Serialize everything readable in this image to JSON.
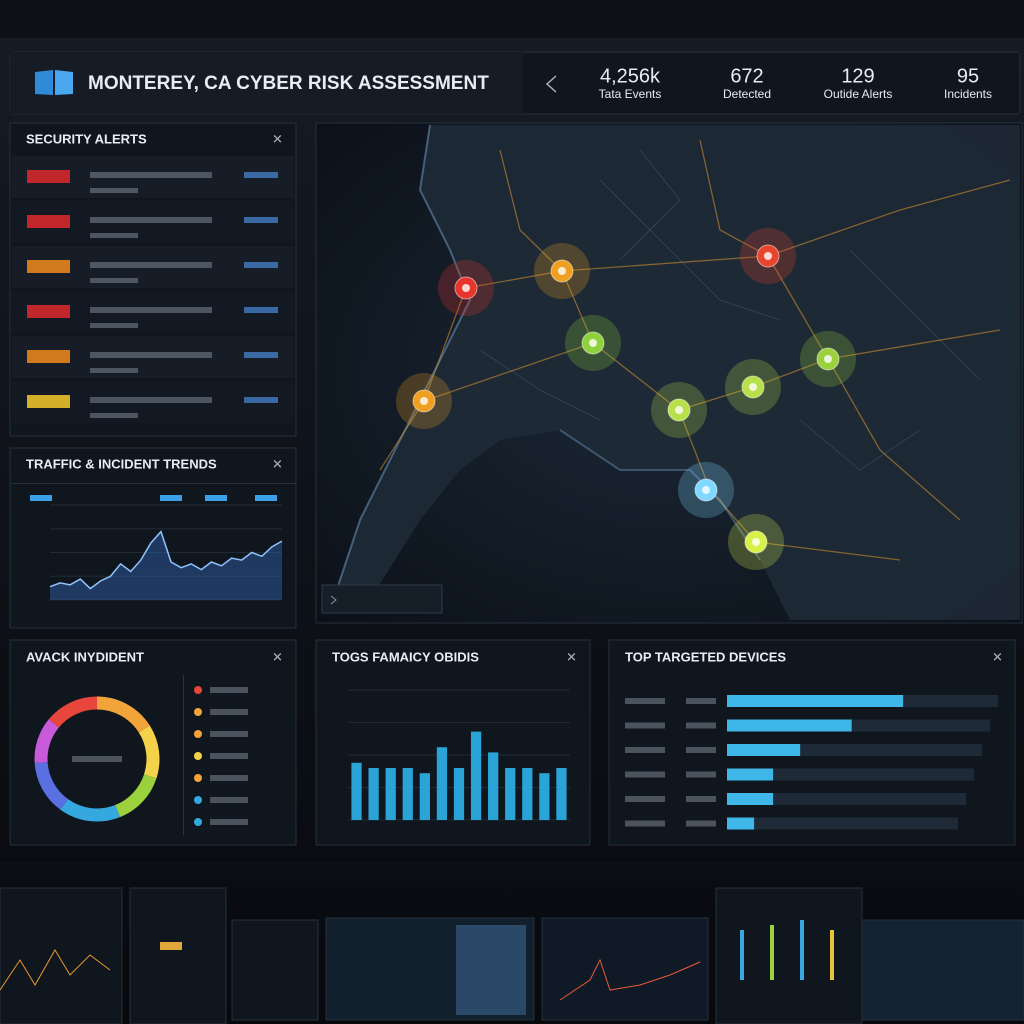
{
  "header": {
    "title": "MONTEREY, CA CYBER RISK ASSESSMENT",
    "stats": [
      {
        "value": "4,256k",
        "label": "Tata Events"
      },
      {
        "value": "672",
        "label": "Detected"
      },
      {
        "value": "129",
        "label": "Outide Alerts"
      },
      {
        "value": "95",
        "label": "Incidents"
      }
    ]
  },
  "panels": {
    "alerts": {
      "title": "SECURITY ALERTS"
    },
    "trends": {
      "title": "TRAFFIC & INCIDENT TRENDS",
      "chart": {
        "type": "area",
        "color": "#3b7be0",
        "ylim": [
          0,
          100
        ],
        "values": [
          14,
          18,
          16,
          22,
          12,
          20,
          25,
          38,
          30,
          42,
          60,
          72,
          40,
          34,
          38,
          32,
          40,
          36,
          44,
          42,
          50,
          46,
          56,
          62
        ]
      }
    },
    "incidents": {
      "title": "AVACK INYDIDENT",
      "chart": {
        "type": "pie",
        "values": [
          16,
          14,
          14,
          16,
          14,
          12,
          14
        ],
        "colors": [
          "#f2a33a",
          "#f4d24a",
          "#9bd13c",
          "#36a8e0",
          "#5a6fe0",
          "#c65ad8",
          "#e8463c"
        ]
      }
    },
    "bars": {
      "title": "TOGS FAMAICY OBIDIS",
      "chart": {
        "type": "bar",
        "color": "#2aa3d6",
        "ylim": [
          0,
          100
        ],
        "values": [
          44,
          40,
          40,
          40,
          36,
          56,
          40,
          68,
          52,
          40,
          40,
          36,
          40
        ]
      }
    },
    "devices": {
      "title": "TOP TARGETED DEVICES",
      "chart": {
        "type": "hbar",
        "color": "#3fb6e8",
        "xlim": [
          0,
          100
        ],
        "values": [
          65,
          46,
          27,
          17,
          17,
          10
        ]
      }
    }
  }
}
